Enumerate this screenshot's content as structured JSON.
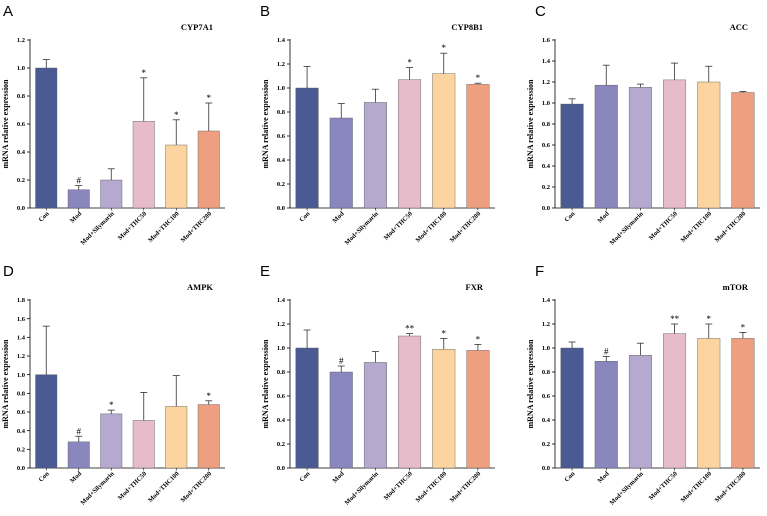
{
  "figure": {
    "categories": [
      "Con",
      "Mod",
      "Mod+Silymarin",
      "Mod+THC50",
      "Mod+THC100",
      "Mod+THC200"
    ],
    "bar_colors": [
      "#4a5b94",
      "#8a87bf",
      "#b6a9cf",
      "#e6bccb",
      "#fcd49f",
      "#ee9f7f"
    ],
    "ylabel": "mRNA relative expression"
  },
  "chart_data": [
    {
      "type": "bar",
      "panel": "A",
      "title": "CYP7A1",
      "ylabel": "mRNA relative expression",
      "ylim": [
        0,
        1.2
      ],
      "yticks": [
        "0.0",
        "0.2",
        "0.4",
        "0.6",
        "0.8",
        "1.0",
        "1.2"
      ],
      "categories": [
        "Con",
        "Mod",
        "Mod+Silymarin",
        "Mod+THC50",
        "Mod+THC100",
        "Mod+THC200"
      ],
      "values": [
        1.0,
        0.13,
        0.2,
        0.62,
        0.45,
        0.55
      ],
      "errors": [
        0.06,
        0.03,
        0.08,
        0.31,
        0.18,
        0.2
      ],
      "significance": [
        "",
        "#",
        "",
        "*",
        "*",
        "*"
      ]
    },
    {
      "type": "bar",
      "panel": "B",
      "title": "CYP8B1",
      "ylabel": "mRNA relative expression",
      "ylim": [
        0,
        1.4
      ],
      "yticks": [
        "0.0",
        "0.2",
        "0.4",
        "0.6",
        "0.8",
        "1.0",
        "1.2",
        "1.4"
      ],
      "categories": [
        "Con",
        "Mod",
        "Mod+Silymarin",
        "Mod+THC50",
        "Mod+THC100",
        "Mod+THC200"
      ],
      "values": [
        1.0,
        0.75,
        0.88,
        1.07,
        1.12,
        1.03
      ],
      "errors": [
        0.18,
        0.12,
        0.11,
        0.1,
        0.17,
        0.01
      ],
      "significance": [
        "",
        "",
        "",
        "*",
        "*",
        "*"
      ]
    },
    {
      "type": "bar",
      "panel": "C",
      "title": "ACC",
      "ylabel": "mRNA relative expression",
      "ylim": [
        0,
        1.6
      ],
      "yticks": [
        "0.0",
        "0.2",
        "0.4",
        "0.6",
        "0.8",
        "1.0",
        "1.2",
        "1.4",
        "1.6"
      ],
      "categories": [
        "Con",
        "Mod",
        "Mod+Silymarin",
        "Mod+THC50",
        "Mod+THC100",
        "Mod+THC200"
      ],
      "values": [
        0.99,
        1.17,
        1.15,
        1.22,
        1.2,
        1.1
      ],
      "errors": [
        0.05,
        0.19,
        0.03,
        0.16,
        0.15,
        0.01
      ],
      "significance": [
        "",
        "",
        "",
        "",
        "",
        ""
      ]
    },
    {
      "type": "bar",
      "panel": "D",
      "title": "AMPK",
      "ylabel": "mRNA relative expression",
      "ylim": [
        0,
        1.8
      ],
      "yticks": [
        "0.0",
        "0.2",
        "0.4",
        "0.6",
        "0.8",
        "1.0",
        "1.2",
        "1.4",
        "1.6",
        "1.8"
      ],
      "categories": [
        "Con",
        "Mod",
        "Mod+Silymarin",
        "Mod+THC50",
        "Mod+THC100",
        "Mod+THC200"
      ],
      "values": [
        1.0,
        0.28,
        0.58,
        0.51,
        0.66,
        0.68
      ],
      "errors": [
        0.52,
        0.06,
        0.04,
        0.3,
        0.33,
        0.04
      ],
      "significance": [
        "",
        "#",
        "*",
        "",
        "",
        "*"
      ]
    },
    {
      "type": "bar",
      "panel": "E",
      "title": "FXR",
      "ylabel": "mRNA relative expression",
      "ylim": [
        0,
        1.4
      ],
      "yticks": [
        "0.0",
        "0.2",
        "0.4",
        "0.6",
        "0.8",
        "1.0",
        "1.2",
        "1.4"
      ],
      "categories": [
        "Con",
        "Mod",
        "Mod+Silymarin",
        "Mod+THC50",
        "Mod+THC100",
        "Mod+THC200"
      ],
      "values": [
        1.0,
        0.8,
        0.88,
        1.1,
        0.99,
        0.98
      ],
      "errors": [
        0.15,
        0.05,
        0.09,
        0.02,
        0.09,
        0.05
      ],
      "significance": [
        "",
        "#",
        "",
        "**",
        "*",
        "*"
      ]
    },
    {
      "type": "bar",
      "panel": "F",
      "title": "mTOR",
      "ylabel": "mRNA relative expression",
      "ylim": [
        0,
        1.4
      ],
      "yticks": [
        "0.0",
        "0.2",
        "0.4",
        "0.6",
        "0.8",
        "1.0",
        "1.2",
        "1.4"
      ],
      "categories": [
        "Con",
        "Mod",
        "Mod+Silymarin",
        "Mod+THC50",
        "Mod+THC100",
        "Mod+THC200"
      ],
      "values": [
        1.0,
        0.89,
        0.94,
        1.12,
        1.08,
        1.08
      ],
      "errors": [
        0.05,
        0.04,
        0.1,
        0.08,
        0.12,
        0.05
      ],
      "significance": [
        "",
        "#",
        "",
        "**",
        "*",
        "*"
      ]
    }
  ]
}
